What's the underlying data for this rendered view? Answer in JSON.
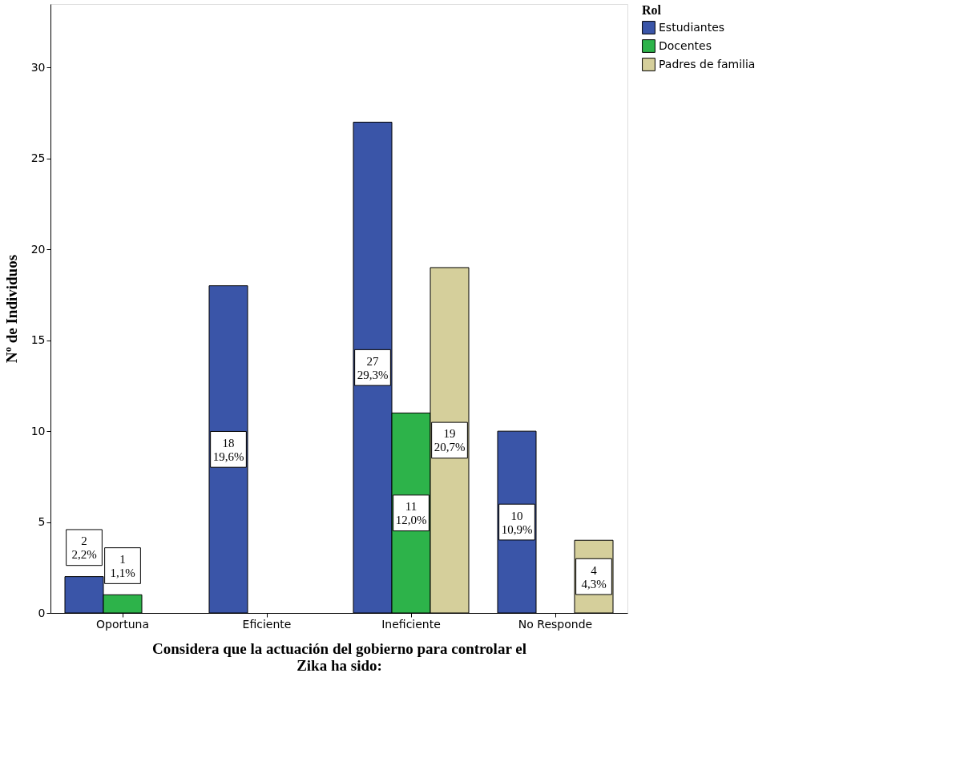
{
  "chart_data": {
    "type": "bar",
    "xlabel": "Considera que  la actuación del gobierno para controlar el\nZika ha sido:",
    "ylabel": "Nº de Individuos",
    "legend_title": "Rol",
    "categories": [
      "Oportuna",
      "Eficiente",
      "Ineficiente",
      "No Responde"
    ],
    "series": [
      {
        "name": "Estudiantes",
        "color": "#3a55a8",
        "values": [
          2,
          18,
          27,
          10
        ],
        "value_labels": [
          "2\n2,2%",
          "18\n19,6%",
          "27\n29,3%",
          "10\n10,9%"
        ]
      },
      {
        "name": "Docentes",
        "color": "#2db34a",
        "values": [
          1,
          null,
          11,
          null
        ],
        "value_labels": [
          "1\n1,1%",
          null,
          "11\n12,0%",
          null
        ]
      },
      {
        "name": "Padres de familia",
        "color": "#d5cf9b",
        "values": [
          null,
          null,
          19,
          4
        ],
        "value_labels": [
          null,
          null,
          "19\n20,7%",
          "4\n4,3%"
        ]
      }
    ],
    "ylim": [
      0,
      33.5
    ],
    "yticks": [
      0,
      5,
      10,
      15,
      20,
      25,
      30
    ],
    "grid": false,
    "legend": "top right"
  }
}
